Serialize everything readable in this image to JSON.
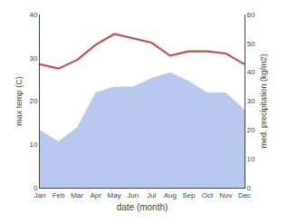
{
  "chart_data": {
    "type": "line",
    "categories": [
      "Jan",
      "Feb",
      "Mar",
      "Apr",
      "May",
      "Jun",
      "Jul",
      "Aug",
      "Sep",
      "Oct",
      "Nov",
      "Dec"
    ],
    "xlabel": "date (month)",
    "ylabel": "max temp (C)",
    "y2label": "med. precipitation (kg/m2)",
    "series": [
      {
        "type": "area",
        "axis": "y2",
        "color": "#b8c8ee",
        "values": [
          20,
          16,
          21,
          33,
          35,
          35,
          38,
          40,
          37,
          33,
          33,
          27
        ]
      },
      {
        "type": "line",
        "color": "#c0504d",
        "values": [
          28.5,
          27.5,
          29.5,
          33.0,
          35.5,
          34.5,
          33.5,
          30.5,
          31.5,
          31.5,
          31.0,
          28.5
        ]
      }
    ],
    "ylim": [
      0,
      40
    ],
    "yticks": [
      0,
      10,
      20,
      30,
      40
    ],
    "y2lim": [
      0,
      60
    ],
    "y2ticks": [
      0,
      10,
      20,
      30,
      40,
      50,
      60
    ],
    "grid": false
  }
}
